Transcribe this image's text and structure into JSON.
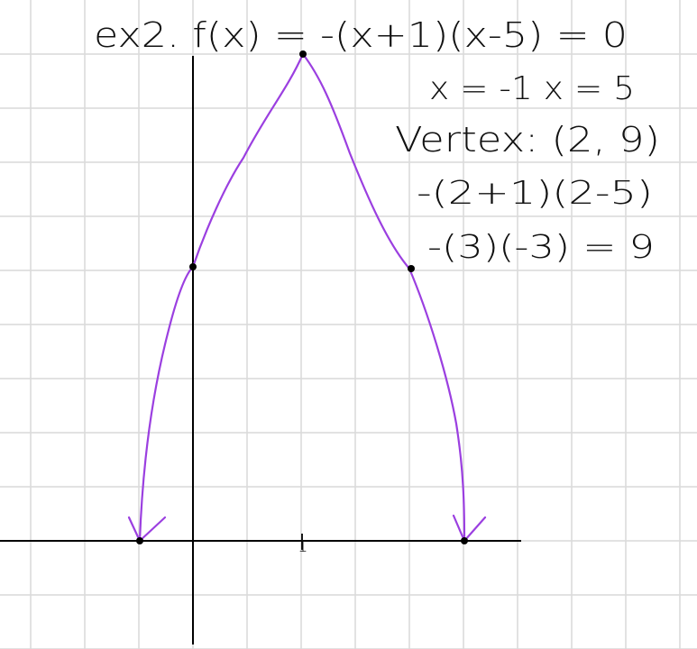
{
  "notes": {
    "title": "ex2. f(x) = -(x+1)(x-5) = 0",
    "roots": "x = -1   x = 5",
    "vertex": "Vertex: (2, 9)",
    "calc_step_1": "-(2+1)(2-5)",
    "calc_step_2": "-(3)(-3) = 9"
  },
  "graph": {
    "tick_label_x": "1",
    "curve_color": "#9b3fe0",
    "axis_color": "#000000",
    "grid_color": "#d9d9d9"
  }
}
